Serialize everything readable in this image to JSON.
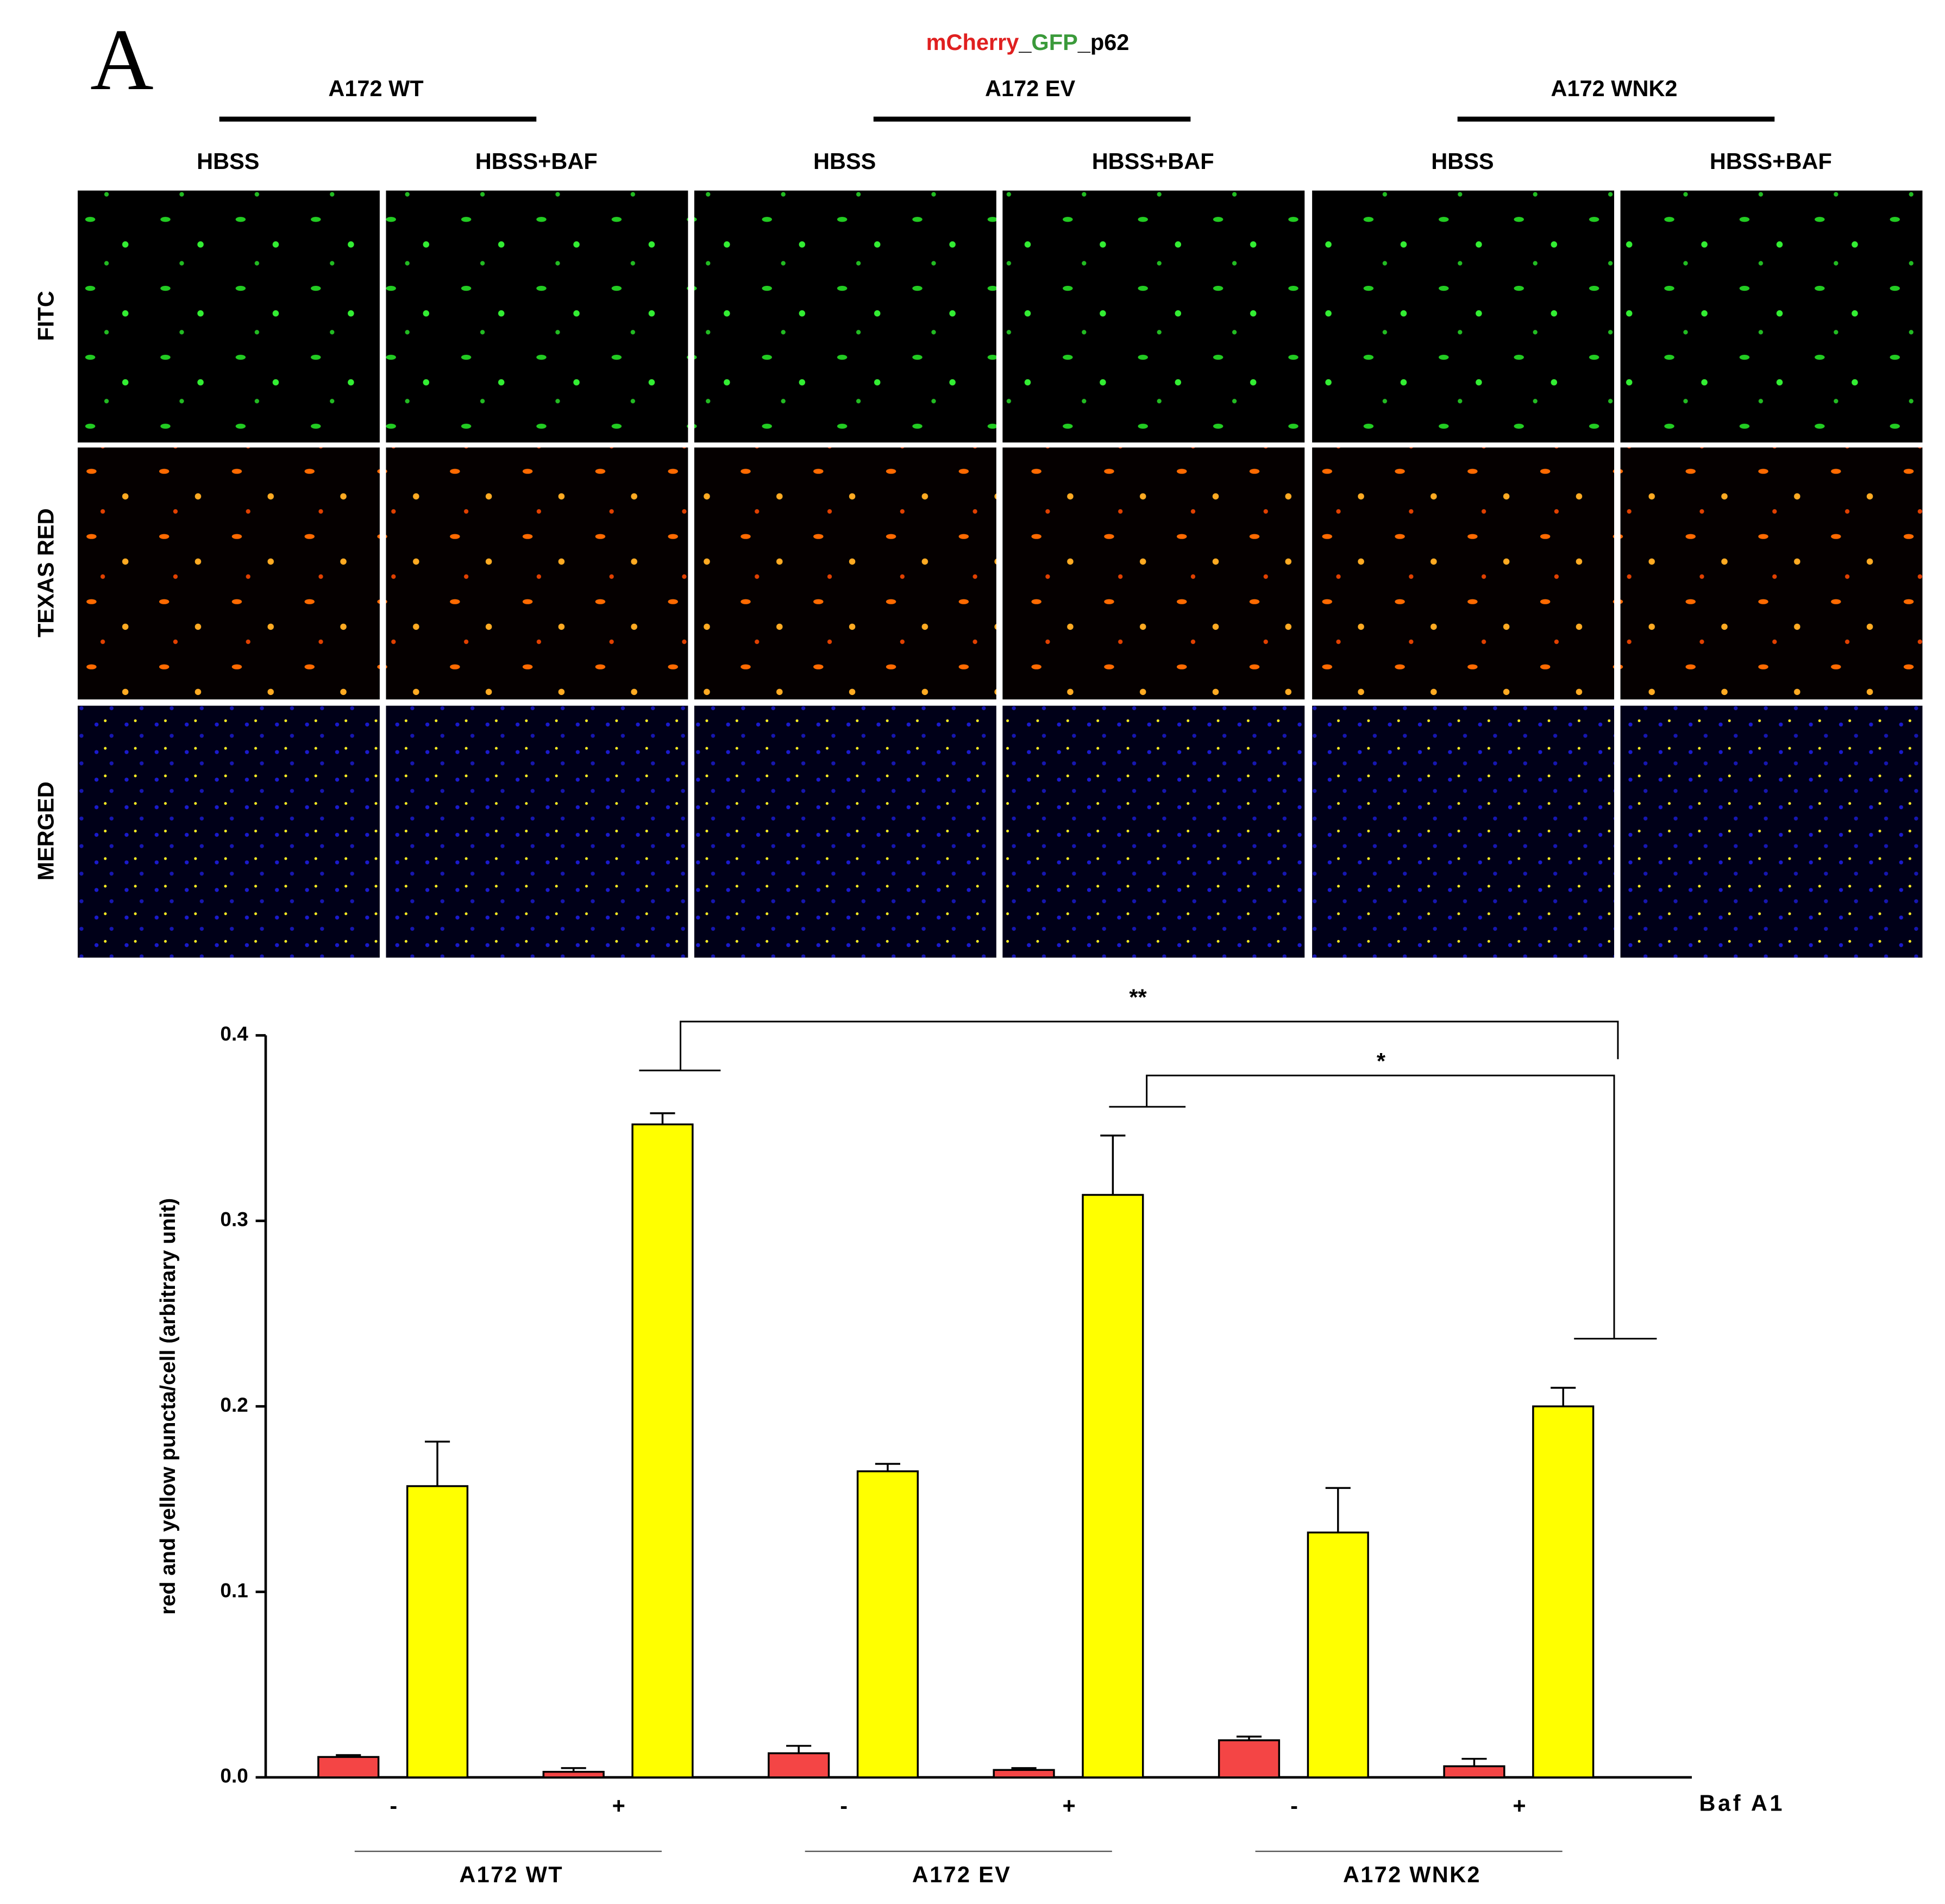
{
  "panel_label": "A",
  "figure": {
    "title_parts": [
      "mCherry",
      "_",
      "GFP",
      "_p62"
    ],
    "cell_lines": [
      "A172 WT",
      "A172 EV",
      "A172 WNK2"
    ],
    "conditions": [
      "HBSS",
      "HBSS+BAF",
      "HBSS",
      "HBSS+BAF",
      "HBSS",
      "HBSS+BAF"
    ],
    "channels": [
      "FITC",
      "TEXAS RED",
      "MERGED"
    ]
  },
  "chart_data": {
    "type": "bar",
    "y_label": "red and yellow puncta/cell (arbitrary unit)",
    "x_label": "Baf A1",
    "categories": [
      "-",
      "+",
      "-",
      "+",
      "-",
      "+"
    ],
    "groups": [
      "A172 WT",
      "A172 EV",
      "A172 WNK2"
    ],
    "series": [
      {
        "color": "#f44545",
        "values": [
          0.011,
          0.003,
          0.013,
          0.004,
          0.02,
          0.006
        ],
        "errors": [
          0.001,
          0.002,
          0.004,
          0.001,
          0.002,
          0.004
        ]
      },
      {
        "color": "#ffff00",
        "values": [
          0.157,
          0.352,
          0.165,
          0.314,
          0.132,
          0.2
        ],
        "errors": [
          0.024,
          0.006,
          0.004,
          0.032,
          0.024,
          0.01
        ]
      }
    ],
    "ylim": [
      0,
      0.4
    ],
    "yticks": [
      {
        "value": 0,
        "label": "0.0"
      },
      0.1,
      0.2,
      0.3,
      0.4
    ],
    "annotations": [
      "**",
      "*"
    ]
  }
}
